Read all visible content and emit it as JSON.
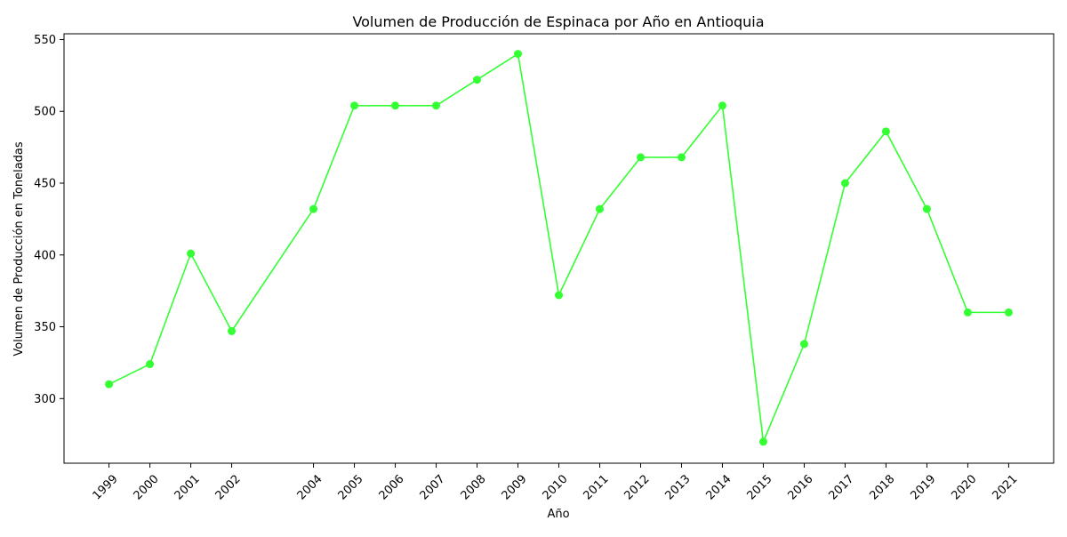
{
  "chart_data": {
    "type": "line",
    "title": "Volumen de Producción de Espinaca por Año en Antioquia",
    "xlabel": "Año",
    "ylabel": "Volumen de Producción en Toneladas",
    "x": [
      1999,
      2000,
      2001,
      2002,
      2004,
      2005,
      2006,
      2007,
      2008,
      2009,
      2010,
      2011,
      2012,
      2013,
      2014,
      2015,
      2016,
      2017,
      2018,
      2019,
      2020,
      2021
    ],
    "x_tick_labels": [
      "1999",
      "2000",
      "2001",
      "2002",
      "2004",
      "2005",
      "2006",
      "2007",
      "2008",
      "2009",
      "2010",
      "2011",
      "2012",
      "2013",
      "2014",
      "2015",
      "2016",
      "2017",
      "2018",
      "2019",
      "2020",
      "2021"
    ],
    "y_ticks": [
      300,
      350,
      400,
      450,
      500,
      550
    ],
    "y_tick_labels": [
      "300",
      "350",
      "400",
      "450",
      "500",
      "550"
    ],
    "series": [
      {
        "values": [
          310,
          324,
          401,
          347,
          432,
          504,
          504,
          504,
          522,
          540,
          372,
          432,
          468,
          468,
          504,
          270,
          338,
          450,
          486,
          432,
          360,
          360
        ],
        "color": "#33ff33"
      }
    ],
    "xlim": [
      1997.9,
      2022.1
    ],
    "ylim": [
      255,
      554
    ],
    "marker": "circle",
    "grid": false,
    "legend": "none",
    "x_tick_rotation": 45
  }
}
